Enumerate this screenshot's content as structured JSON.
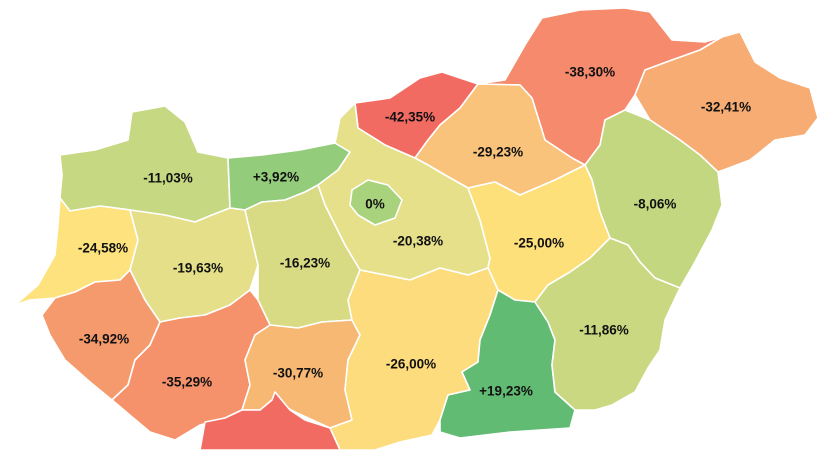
{
  "counties": [
    {
      "id": "gyor-moson-sopron",
      "value": "-11,03%",
      "color": "#c6d882"
    },
    {
      "id": "komarom-esztergom",
      "value": "+3,92%",
      "color": "#93cc7a"
    },
    {
      "id": "nograd",
      "value": "-42,35%",
      "color": "#f26b62"
    },
    {
      "id": "borsod-abauj-zemplen",
      "value": "-38,30%",
      "color": "#f58a6c"
    },
    {
      "id": "szabolcs-szatmar-bereg",
      "value": "-32,41%",
      "color": "#f6ac72"
    },
    {
      "id": "heves",
      "value": "-29,23%",
      "color": "#f9c37b"
    },
    {
      "id": "budapest",
      "value": "0%",
      "color": "#a8d27c"
    },
    {
      "id": "pest",
      "value": "-20,38%",
      "color": "#e6e08a"
    },
    {
      "id": "jasz-nagykun-szolnok",
      "value": "-25,00%",
      "color": "#fde07a"
    },
    {
      "id": "hajdu-bihar",
      "value": "-8,06%",
      "color": "#c3d780"
    },
    {
      "id": "vas",
      "value": "-24,58%",
      "color": "#fde27e"
    },
    {
      "id": "veszprem",
      "value": "-19,63%",
      "color": "#e4df88"
    },
    {
      "id": "fejer",
      "value": "-16,23%",
      "color": "#d8db84"
    },
    {
      "id": "bekes",
      "value": "-11,86%",
      "color": "#cad981"
    },
    {
      "id": "zala",
      "value": "-34,92%",
      "color": "#f59a6c"
    },
    {
      "id": "somogy",
      "value": "-35,29%",
      "color": "#f5926b"
    },
    {
      "id": "tolna",
      "value": "-30,77%",
      "color": "#f7b874"
    },
    {
      "id": "bacs-kiskun",
      "value": "-26,00%",
      "color": "#fcdc7c"
    },
    {
      "id": "csongrad-csanad",
      "value": "+19,23%",
      "color": "#62bb72"
    },
    {
      "id": "baranya",
      "value": "",
      "color": "#f26b62"
    }
  ]
}
